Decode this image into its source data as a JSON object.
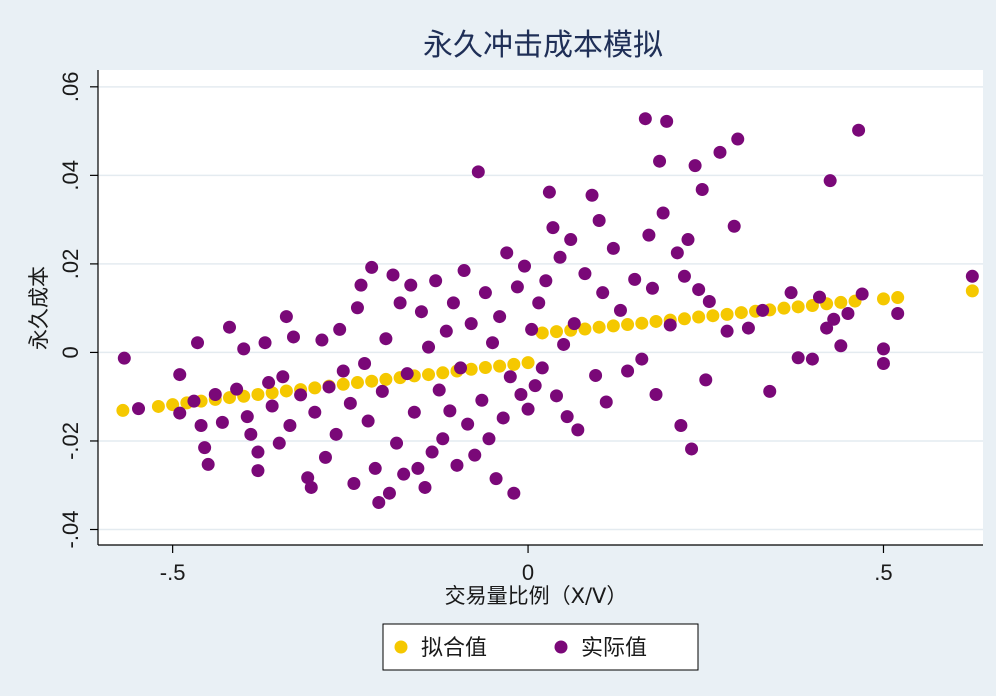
{
  "chart_data": {
    "type": "scatter",
    "title": "永久冲击成本模拟",
    "xlabel": "交易量比例（X/V）",
    "ylabel": "永久成本",
    "xlim": [
      -0.605,
      0.64
    ],
    "ylim": [
      -0.0435,
      0.0638
    ],
    "x_ticks": [
      {
        "value": -0.5,
        "label": "-.5"
      },
      {
        "value": 0,
        "label": "0"
      },
      {
        "value": 0.5,
        "label": ".5"
      }
    ],
    "y_ticks": [
      {
        "value": -0.04,
        "label": "-.04"
      },
      {
        "value": -0.02,
        "label": "-.02"
      },
      {
        "value": 0,
        "label": "0"
      },
      {
        "value": 0.02,
        "label": ".02"
      },
      {
        "value": 0.04,
        "label": ".04"
      },
      {
        "value": 0.06,
        "label": ".06"
      }
    ],
    "grid": true,
    "legend_position": "bottom-center",
    "series": [
      {
        "name": "拟合值",
        "color": "#f5c800",
        "points": [
          [
            -0.57,
            -0.0131
          ],
          [
            -0.52,
            -0.0122
          ],
          [
            -0.5,
            -0.0118
          ],
          [
            -0.48,
            -0.0114
          ],
          [
            -0.46,
            -0.011
          ],
          [
            -0.44,
            -0.0106
          ],
          [
            -0.42,
            -0.0102
          ],
          [
            -0.4,
            -0.0099
          ],
          [
            -0.38,
            -0.0095
          ],
          [
            -0.36,
            -0.0091
          ],
          [
            -0.34,
            -0.0087
          ],
          [
            -0.32,
            -0.0084
          ],
          [
            -0.3,
            -0.008
          ],
          [
            -0.28,
            -0.0076
          ],
          [
            -0.26,
            -0.0072
          ],
          [
            -0.24,
            -0.0068
          ],
          [
            -0.22,
            -0.0065
          ],
          [
            -0.2,
            -0.0061
          ],
          [
            -0.18,
            -0.0057
          ],
          [
            -0.16,
            -0.0053
          ],
          [
            -0.14,
            -0.005
          ],
          [
            -0.12,
            -0.0046
          ],
          [
            -0.1,
            -0.0042
          ],
          [
            -0.08,
            -0.0038
          ],
          [
            -0.06,
            -0.0034
          ],
          [
            -0.04,
            -0.0031
          ],
          [
            -0.02,
            -0.0027
          ],
          [
            0.0,
            -0.0023
          ],
          [
            0.02,
            0.0044
          ],
          [
            0.04,
            0.0047
          ],
          [
            0.06,
            0.005
          ],
          [
            0.08,
            0.0053
          ],
          [
            0.1,
            0.0057
          ],
          [
            0.12,
            0.006
          ],
          [
            0.14,
            0.0063
          ],
          [
            0.16,
            0.0066
          ],
          [
            0.18,
            0.007
          ],
          [
            0.2,
            0.0073
          ],
          [
            0.22,
            0.0076
          ],
          [
            0.24,
            0.008
          ],
          [
            0.26,
            0.0083
          ],
          [
            0.28,
            0.0086
          ],
          [
            0.3,
            0.009
          ],
          [
            0.32,
            0.0093
          ],
          [
            0.34,
            0.0096
          ],
          [
            0.36,
            0.01
          ],
          [
            0.38,
            0.0103
          ],
          [
            0.4,
            0.0106
          ],
          [
            0.42,
            0.011
          ],
          [
            0.44,
            0.0113
          ],
          [
            0.46,
            0.0116
          ],
          [
            0.5,
            0.0121
          ],
          [
            0.52,
            0.0124
          ],
          [
            0.625,
            0.0139
          ]
        ]
      },
      {
        "name": "实际值",
        "color": "#7a0878",
        "points": [
          [
            -0.568,
            -0.0013
          ],
          [
            -0.548,
            -0.0127
          ],
          [
            -0.49,
            -0.005
          ],
          [
            -0.49,
            -0.0137
          ],
          [
            -0.47,
            -0.011
          ],
          [
            -0.465,
            0.0022
          ],
          [
            -0.46,
            -0.0165
          ],
          [
            -0.455,
            -0.0215
          ],
          [
            -0.45,
            -0.0253
          ],
          [
            -0.44,
            -0.0095
          ],
          [
            -0.43,
            -0.0158
          ],
          [
            -0.42,
            0.0057
          ],
          [
            -0.41,
            -0.0083
          ],
          [
            -0.4,
            0.0008
          ],
          [
            -0.395,
            -0.0145
          ],
          [
            -0.39,
            -0.0185
          ],
          [
            -0.38,
            -0.0225
          ],
          [
            -0.38,
            -0.0267
          ],
          [
            -0.37,
            0.0022
          ],
          [
            -0.365,
            -0.0068
          ],
          [
            -0.36,
            -0.0121
          ],
          [
            -0.35,
            -0.0205
          ],
          [
            -0.345,
            -0.0055
          ],
          [
            -0.34,
            0.0081
          ],
          [
            -0.335,
            -0.0165
          ],
          [
            -0.33,
            0.0035
          ],
          [
            -0.32,
            -0.0096
          ],
          [
            -0.31,
            -0.0283
          ],
          [
            -0.305,
            -0.0305
          ],
          [
            -0.3,
            -0.0135
          ],
          [
            -0.29,
            0.0028
          ],
          [
            -0.285,
            -0.0237
          ],
          [
            -0.28,
            -0.0078
          ],
          [
            -0.27,
            -0.0185
          ],
          [
            -0.265,
            0.0052
          ],
          [
            -0.26,
            -0.0042
          ],
          [
            -0.25,
            -0.0115
          ],
          [
            -0.245,
            -0.0296
          ],
          [
            -0.24,
            0.0101
          ],
          [
            -0.235,
            0.0152
          ],
          [
            -0.23,
            -0.0025
          ],
          [
            -0.225,
            -0.0155
          ],
          [
            -0.22,
            0.0192
          ],
          [
            -0.215,
            -0.0262
          ],
          [
            -0.21,
            -0.0339
          ],
          [
            -0.205,
            -0.0088
          ],
          [
            -0.2,
            0.0031
          ],
          [
            -0.195,
            -0.0318
          ],
          [
            -0.19,
            0.0175
          ],
          [
            -0.185,
            -0.0205
          ],
          [
            -0.18,
            0.0112
          ],
          [
            -0.175,
            -0.0275
          ],
          [
            -0.17,
            -0.0048
          ],
          [
            -0.165,
            0.0152
          ],
          [
            -0.16,
            -0.0135
          ],
          [
            -0.155,
            -0.0262
          ],
          [
            -0.15,
            0.0092
          ],
          [
            -0.145,
            -0.0305
          ],
          [
            -0.14,
            0.0012
          ],
          [
            -0.135,
            -0.0225
          ],
          [
            -0.13,
            0.0162
          ],
          [
            -0.125,
            -0.0085
          ],
          [
            -0.12,
            -0.0195
          ],
          [
            -0.115,
            0.0048
          ],
          [
            -0.11,
            -0.0132
          ],
          [
            -0.105,
            0.0112
          ],
          [
            -0.1,
            -0.0255
          ],
          [
            -0.095,
            -0.0035
          ],
          [
            -0.09,
            0.0185
          ],
          [
            -0.085,
            -0.0162
          ],
          [
            -0.08,
            0.0065
          ],
          [
            -0.075,
            -0.0232
          ],
          [
            -0.07,
            0.0408
          ],
          [
            -0.065,
            -0.0108
          ],
          [
            -0.06,
            0.0135
          ],
          [
            -0.055,
            -0.0195
          ],
          [
            -0.05,
            0.0022
          ],
          [
            -0.045,
            -0.0285
          ],
          [
            -0.04,
            0.0081
          ],
          [
            -0.035,
            -0.0148
          ],
          [
            -0.03,
            0.0225
          ],
          [
            -0.025,
            -0.0055
          ],
          [
            -0.02,
            -0.0318
          ],
          [
            -0.015,
            0.0148
          ],
          [
            -0.01,
            -0.0095
          ],
          [
            -0.005,
            0.0195
          ],
          [
            0.0,
            -0.0128
          ],
          [
            0.005,
            0.0052
          ],
          [
            0.01,
            -0.0075
          ],
          [
            0.015,
            0.0112
          ],
          [
            0.02,
            -0.0035
          ],
          [
            0.025,
            0.0162
          ],
          [
            0.03,
            0.0362
          ],
          [
            0.035,
            0.0282
          ],
          [
            0.04,
            -0.0098
          ],
          [
            0.045,
            0.0215
          ],
          [
            0.05,
            0.0018
          ],
          [
            0.055,
            -0.0145
          ],
          [
            0.06,
            0.0255
          ],
          [
            0.065,
            0.0065
          ],
          [
            0.07,
            -0.0175
          ],
          [
            0.08,
            0.0178
          ],
          [
            0.09,
            0.0355
          ],
          [
            0.095,
            -0.0052
          ],
          [
            0.1,
            0.0298
          ],
          [
            0.105,
            0.0135
          ],
          [
            0.11,
            -0.0112
          ],
          [
            0.12,
            0.0235
          ],
          [
            0.13,
            0.0095
          ],
          [
            0.14,
            -0.0042
          ],
          [
            0.15,
            0.0165
          ],
          [
            0.16,
            -0.0015
          ],
          [
            0.165,
            0.0528
          ],
          [
            0.17,
            0.0265
          ],
          [
            0.175,
            0.0145
          ],
          [
            0.18,
            -0.0095
          ],
          [
            0.185,
            0.0432
          ],
          [
            0.19,
            0.0315
          ],
          [
            0.195,
            0.0522
          ],
          [
            0.2,
            0.0062
          ],
          [
            0.21,
            0.0225
          ],
          [
            0.215,
            -0.0165
          ],
          [
            0.22,
            0.0172
          ],
          [
            0.225,
            0.0255
          ],
          [
            0.23,
            -0.0218
          ],
          [
            0.235,
            0.0422
          ],
          [
            0.24,
            0.0142
          ],
          [
            0.245,
            0.0368
          ],
          [
            0.25,
            -0.0062
          ],
          [
            0.255,
            0.0115
          ],
          [
            0.27,
            0.0452
          ],
          [
            0.28,
            0.0048
          ],
          [
            0.29,
            0.0285
          ],
          [
            0.295,
            0.0482
          ],
          [
            0.31,
            0.0055
          ],
          [
            0.33,
            0.0095
          ],
          [
            0.34,
            -0.0088
          ],
          [
            0.37,
            0.0135
          ],
          [
            0.38,
            -0.0012
          ],
          [
            0.4,
            -0.0015
          ],
          [
            0.41,
            0.0125
          ],
          [
            0.42,
            0.0055
          ],
          [
            0.425,
            0.0388
          ],
          [
            0.43,
            0.0075
          ],
          [
            0.44,
            0.0015
          ],
          [
            0.45,
            0.0088
          ],
          [
            0.465,
            0.0502
          ],
          [
            0.47,
            0.0132
          ],
          [
            0.5,
            0.0008
          ],
          [
            0.5,
            -0.0025
          ],
          [
            0.52,
            0.0088
          ],
          [
            0.625,
            0.0172
          ]
        ]
      }
    ]
  }
}
